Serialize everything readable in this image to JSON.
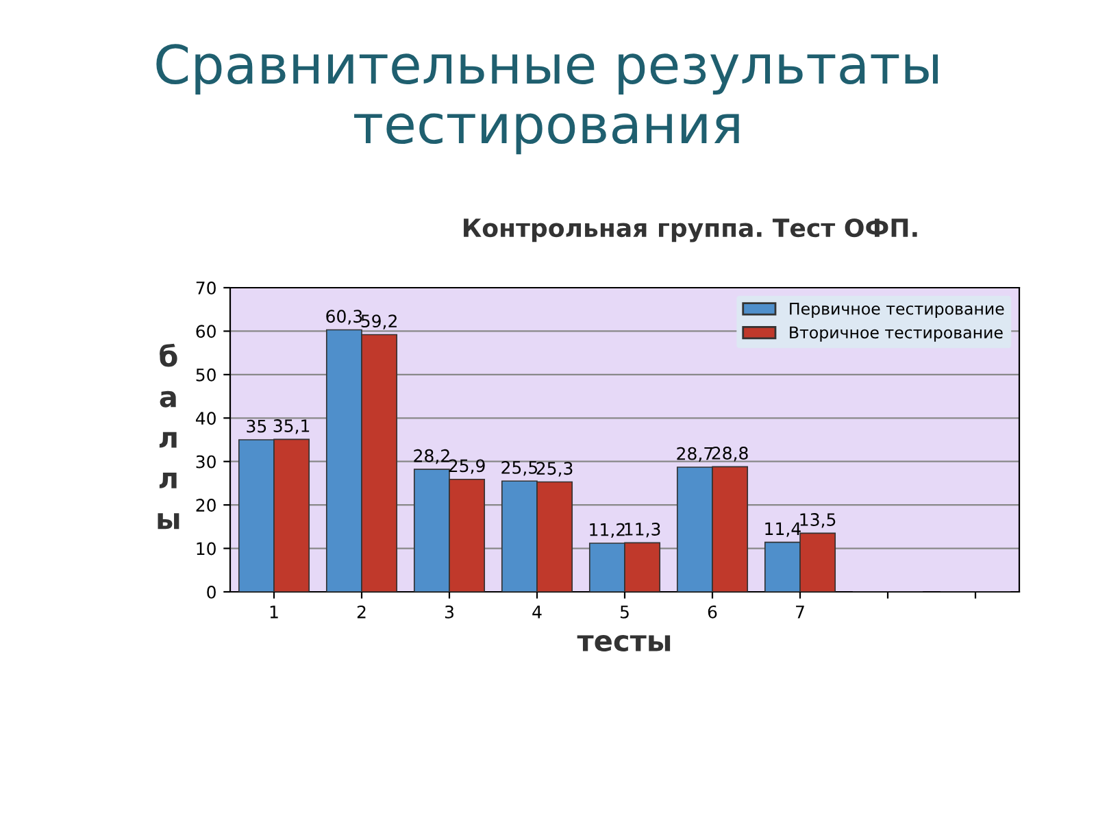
{
  "chart_data": {
    "type": "bar",
    "title": "Сравнительные результаты тестирования",
    "subtitle": "Контрольная группа. Тест ОФП.",
    "xlabel": "тесты",
    "ylabel": "баллы",
    "categories": [
      "1",
      "2",
      "3",
      "4",
      "5",
      "6",
      "7",
      null,
      null
    ],
    "series": [
      {
        "name": "Первичное тестирование",
        "color": "#4f8fcb",
        "values": [
          35,
          60.3,
          28.2,
          25.5,
          11.2,
          28.7,
          11.4,
          null,
          null
        ],
        "value_labels": [
          "35",
          "60,3",
          "28,2",
          "25,5",
          "11,2",
          "28,7",
          "11,4",
          null,
          null
        ]
      },
      {
        "name": "Вторичное тестирование",
        "color": "#c0392b",
        "values": [
          35.1,
          59.2,
          25.9,
          25.3,
          11.3,
          28.8,
          13.5,
          null,
          null
        ],
        "value_labels": [
          "35,1",
          "59,2",
          "25,9",
          "25,3",
          "11,3",
          "28,8",
          "13,5",
          null,
          null
        ]
      }
    ],
    "ylim": [
      0,
      70
    ],
    "yticks": [
      0,
      10,
      20,
      30,
      40,
      50,
      60,
      70
    ],
    "grid": "y",
    "legend": "top right"
  }
}
